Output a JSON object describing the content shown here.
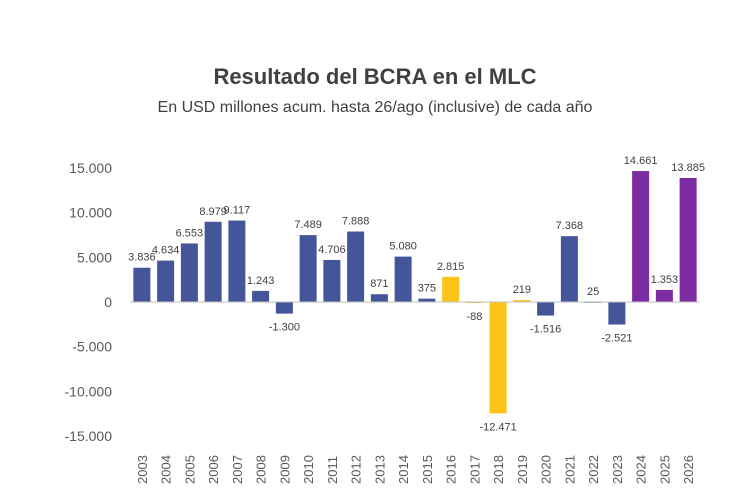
{
  "chart_data": {
    "type": "bar",
    "title": "Resultado del BCRA en el MLC",
    "subtitle": "En USD millones acum. hasta 26/ago (inclusive) de cada año",
    "xlabel": "",
    "ylabel": "",
    "ylim": [
      -15000,
      15000
    ],
    "yticks": [
      15000,
      10000,
      5000,
      0,
      -5000,
      -10000,
      -15000
    ],
    "ytick_labels": [
      "15.000",
      "10.000",
      "5.000",
      "0",
      "-5.000",
      "-10.000",
      "-15.000"
    ],
    "grid": false,
    "categories": [
      "2003",
      "2004",
      "2005",
      "2006",
      "2007",
      "2008",
      "2009",
      "2010",
      "2011",
      "2012",
      "2013",
      "2014",
      "2015",
      "2016",
      "2017",
      "2018",
      "2019",
      "2020",
      "2021",
      "2022",
      "2023",
      "2024",
      "2025",
      "2026"
    ],
    "values": [
      3836,
      4634,
      6553,
      8979,
      9117,
      1243,
      -1300,
      7489,
      4706,
      7888,
      871,
      5080,
      375,
      2815,
      -88,
      -12471,
      219,
      -1516,
      7368,
      25,
      -2521,
      14661,
      1353,
      13885
    ],
    "data_labels": [
      "3.836",
      "4.634",
      "6.553",
      "8.979",
      "9.117",
      "1.243",
      "-1.300",
      "7.489",
      "4.706",
      "7.888",
      "871",
      "5.080",
      "375",
      "2.815",
      "-88",
      "-12.471",
      "219",
      "-1.516",
      "7.368",
      "25",
      "-2.521",
      "14.661",
      "1.353",
      "13.885"
    ],
    "bar_colors": [
      "#44559a",
      "#44559a",
      "#44559a",
      "#44559a",
      "#44559a",
      "#44559a",
      "#44559a",
      "#44559a",
      "#44559a",
      "#44559a",
      "#44559a",
      "#44559a",
      "#44559a",
      "#fcc419",
      "#fcc419",
      "#fcc419",
      "#fcc419",
      "#44559a",
      "#44559a",
      "#44559a",
      "#44559a",
      "#7b2ca3",
      "#7b2ca3",
      "#7b2ca3"
    ],
    "colors": {
      "blue": "#44559a",
      "yellow": "#fcc419",
      "purple": "#7b2ca3",
      "axis": "#bfbfbf",
      "text": "#404040"
    }
  }
}
